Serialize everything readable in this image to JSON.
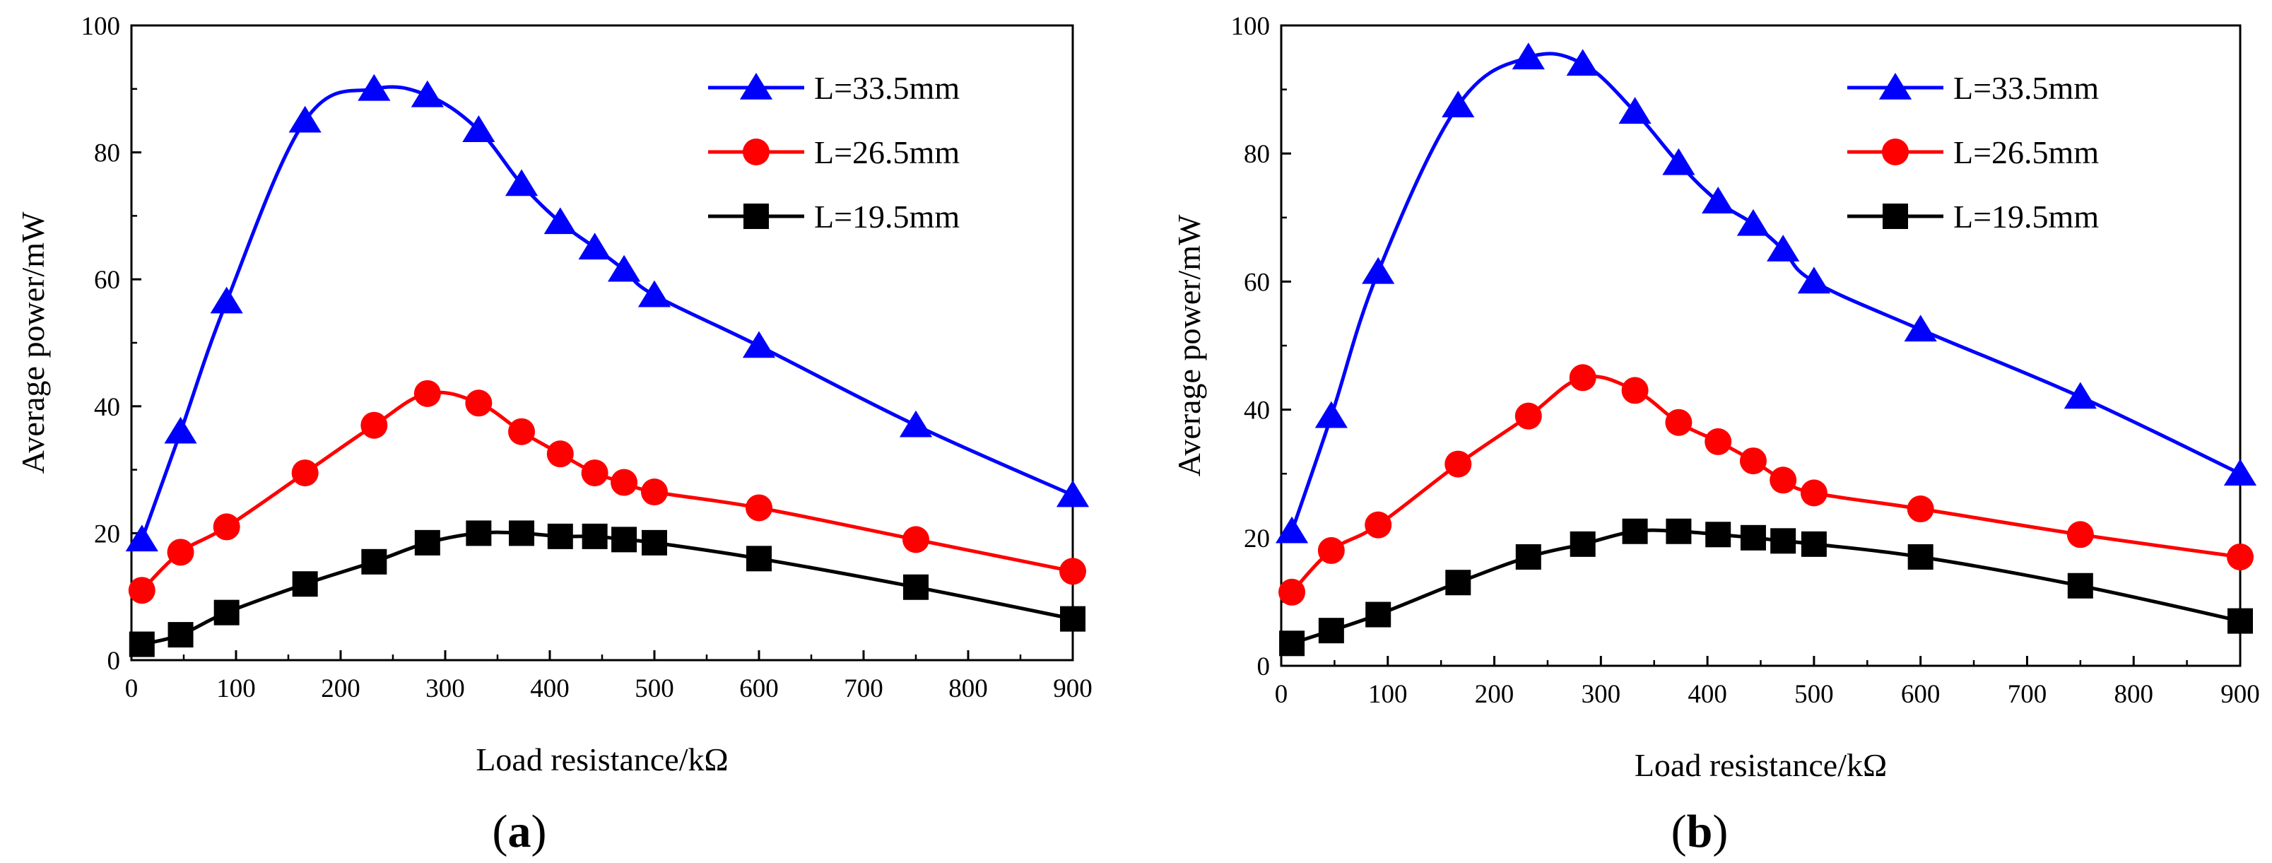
{
  "figure": {
    "panels": [
      {
        "label_open": "(",
        "label_letter": "a",
        "label_close": ")"
      },
      {
        "label_open": "(",
        "label_letter": "b",
        "label_close": ")"
      }
    ]
  },
  "chart_data": [
    {
      "type": "line",
      "panel": "a",
      "xlabel": "Load resistance/kΩ",
      "ylabel": "Average power/mW",
      "xlim": [
        0,
        900
      ],
      "ylim": [
        0,
        100
      ],
      "xticks": [
        0,
        100,
        200,
        300,
        400,
        500,
        600,
        700,
        800,
        900
      ],
      "yticks": [
        0,
        20,
        40,
        60,
        80,
        100
      ],
      "legend_position": "top-right",
      "grid": false,
      "x": [
        10,
        47,
        91,
        166,
        232,
        283,
        332,
        373,
        410,
        443,
        471,
        500,
        600,
        750,
        900
      ],
      "series": [
        {
          "name": "L=33.5mm",
          "color": "#0000ff",
          "marker": "triangle",
          "values": [
            19,
            36,
            56.5,
            85,
            90,
            89,
            83.5,
            75,
            69,
            65,
            61.5,
            57.5,
            49.5,
            37,
            26
          ]
        },
        {
          "name": "L=26.5mm",
          "color": "#ff0000",
          "marker": "circle",
          "values": [
            11,
            17,
            21,
            29.5,
            37,
            42,
            40.5,
            36,
            32.5,
            29.5,
            28,
            26.5,
            24,
            19,
            14
          ]
        },
        {
          "name": "L=19.5mm",
          "color": "#000000",
          "marker": "square",
          "values": [
            2.5,
            4,
            7.5,
            12,
            15.5,
            18.5,
            20,
            20,
            19.5,
            19.5,
            19,
            18.5,
            16,
            11.5,
            6.5
          ]
        }
      ]
    },
    {
      "type": "line",
      "panel": "b",
      "xlabel": "Load resistance/kΩ",
      "ylabel": "Average power/mW",
      "xlim": [
        0,
        900
      ],
      "ylim": [
        0,
        100
      ],
      "xticks": [
        0,
        100,
        200,
        300,
        400,
        500,
        600,
        700,
        800,
        900
      ],
      "yticks": [
        0,
        20,
        40,
        60,
        80,
        100
      ],
      "legend_position": "top-right",
      "grid": false,
      "x": [
        10,
        47,
        91,
        166,
        232,
        283,
        332,
        373,
        410,
        443,
        471,
        500,
        600,
        750,
        900
      ],
      "series": [
        {
          "name": "L=33.5mm",
          "color": "#0000ff",
          "marker": "triangle",
          "values": [
            21,
            39,
            61.5,
            87.5,
            95,
            94,
            86.5,
            78.5,
            72.5,
            69,
            65,
            60,
            52.5,
            42,
            30
          ]
        },
        {
          "name": "L=26.5mm",
          "color": "#ff0000",
          "marker": "circle",
          "values": [
            11.5,
            18,
            22,
            31.5,
            39,
            45,
            43,
            38,
            35,
            32,
            29,
            27,
            24.5,
            20.5,
            17
          ]
        },
        {
          "name": "L=19.5mm",
          "color": "#000000",
          "marker": "square",
          "values": [
            3.5,
            5.5,
            8,
            13,
            17,
            19,
            21,
            21,
            20.5,
            20,
            19.5,
            19,
            17,
            12.5,
            7
          ]
        }
      ]
    }
  ]
}
